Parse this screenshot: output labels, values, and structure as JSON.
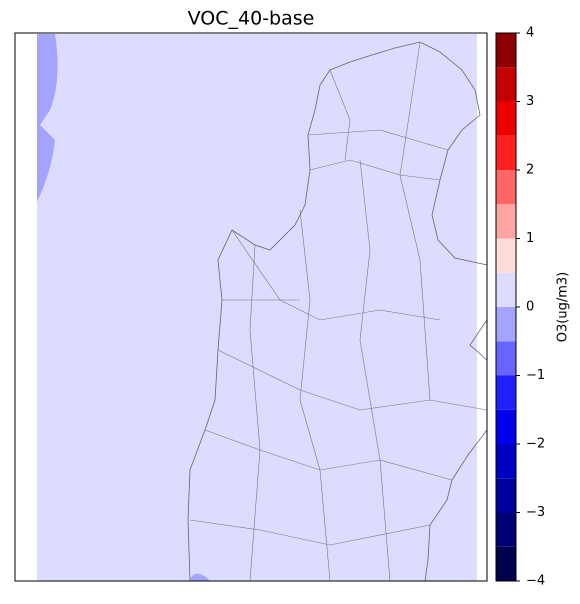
{
  "chart_data": {
    "type": "contourf-map",
    "title": "VOC_40-base",
    "colorbar_label": "O3(ug/m3)",
    "clim": [
      -4,
      4
    ],
    "levels": [
      -4,
      -3.5,
      -3,
      -2.5,
      -2,
      -1.5,
      -1,
      -0.5,
      0,
      0.5,
      1,
      1.5,
      2,
      2.5,
      3,
      3.5,
      4
    ],
    "colors": [
      "#00004c",
      "#000074",
      "#00009c",
      "#0000c4",
      "#0000ec",
      "#2020ff",
      "#6666ff",
      "#a4a4ff",
      "#dcdcff",
      "#ffdcdc",
      "#ffa4a4",
      "#ff6666",
      "#ff2020",
      "#ec0000",
      "#c40000",
      "#8c0000"
    ],
    "cticks": [
      {
        "value": -4,
        "label": "−4"
      },
      {
        "value": -3,
        "label": "−3"
      },
      {
        "value": -2,
        "label": "−2"
      },
      {
        "value": -1,
        "label": "−1"
      },
      0,
      1,
      2,
      3,
      4
    ]
  }
}
